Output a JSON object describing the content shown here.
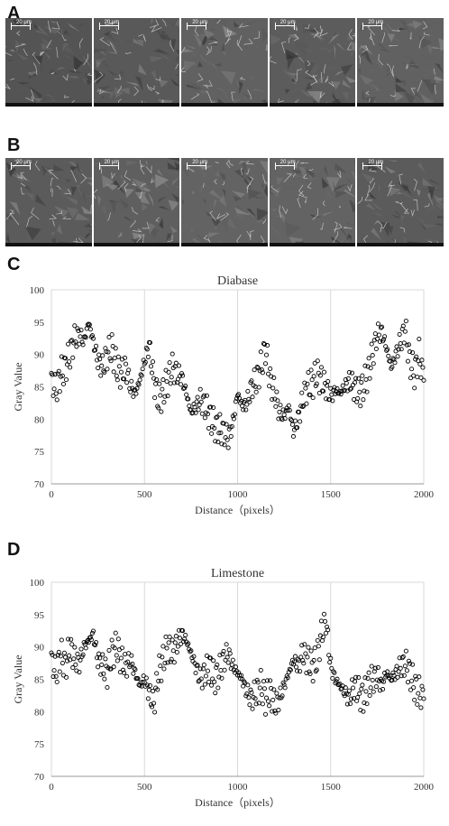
{
  "panels": {
    "a_label": "A",
    "b_label": "B",
    "c_label": "C",
    "d_label": "D"
  },
  "sem_rows": [
    {
      "images": [
        {
          "scale": "20 μm"
        },
        {
          "scale": "20 μm"
        },
        {
          "scale": "20 μm"
        },
        {
          "scale": "20 μm"
        },
        {
          "scale": "20 μm"
        }
      ]
    },
    {
      "images": [
        {
          "scale": "20 μm"
        },
        {
          "scale": "20 μm"
        },
        {
          "scale": "20 μm"
        },
        {
          "scale": "20 μm"
        },
        {
          "scale": "20 μm"
        }
      ]
    }
  ],
  "chart_data": [
    {
      "type": "scatter",
      "title": "Diabase",
      "xlabel": "Distance（pixels）",
      "ylabel": "Gray Value",
      "xlim": [
        0,
        2000
      ],
      "ylim": [
        70,
        100
      ],
      "xticks": [
        0,
        500,
        1000,
        1500,
        2000
      ],
      "yticks": [
        70,
        75,
        80,
        85,
        90,
        95,
        100
      ],
      "grid": "vertical",
      "marker": "open-circle",
      "series": [
        {
          "x": [
            0,
            25,
            50,
            75,
            100,
            125,
            150,
            175,
            200,
            225,
            250,
            275,
            300,
            325,
            350,
            375,
            400,
            425,
            450,
            475,
            500,
            525,
            550,
            575,
            600,
            625,
            650,
            675,
            700,
            725,
            750,
            775,
            800,
            825,
            850,
            875,
            900,
            925,
            950,
            975,
            1000,
            1025,
            1050,
            1075,
            1100,
            1125,
            1150,
            1175,
            1200,
            1225,
            1250,
            1275,
            1300,
            1325,
            1350,
            1375,
            1400,
            1425,
            1450,
            1475,
            1500,
            1525,
            1550,
            1575,
            1600,
            1625,
            1650,
            1675,
            1700,
            1725,
            1750,
            1775,
            1800,
            1825,
            1850,
            1875,
            1900,
            1925,
            1950,
            1975,
            2000
          ],
          "y": [
            86,
            84.5,
            87,
            88,
            90,
            92.5,
            93,
            92,
            95,
            92,
            89,
            88,
            90,
            91,
            88,
            87,
            88,
            85,
            84,
            86,
            89,
            91.5,
            86,
            83,
            84,
            86,
            88,
            87,
            86.5,
            84,
            81,
            82,
            83,
            82,
            80.5,
            79,
            78.5,
            78,
            77,
            79.5,
            84,
            82,
            82.5,
            85,
            86,
            88,
            91,
            86,
            84,
            81,
            80.5,
            82,
            78,
            80,
            83,
            85,
            85.5,
            87,
            86,
            85,
            83.5,
            84.5,
            84,
            85,
            86,
            85,
            84,
            85,
            87,
            90,
            93,
            93.5,
            91,
            88,
            90,
            92,
            94,
            89,
            87,
            90,
            86
          ]
        }
      ]
    },
    {
      "type": "scatter",
      "title": "Limestone",
      "xlabel": "Distance（pixels）",
      "ylabel": "Gray Value",
      "xlim": [
        0,
        2000
      ],
      "ylim": [
        70,
        100
      ],
      "xticks": [
        0,
        500,
        1000,
        1500,
        2000
      ],
      "yticks": [
        70,
        75,
        80,
        85,
        90,
        95,
        100
      ],
      "grid": "vertical",
      "marker": "open-circle",
      "series": [
        {
          "x": [
            0,
            25,
            50,
            75,
            100,
            125,
            150,
            175,
            200,
            225,
            250,
            275,
            300,
            325,
            350,
            375,
            400,
            425,
            450,
            475,
            500,
            525,
            550,
            575,
            600,
            625,
            650,
            675,
            700,
            725,
            750,
            775,
            800,
            825,
            850,
            875,
            900,
            925,
            950,
            975,
            1000,
            1025,
            1050,
            1075,
            1100,
            1125,
            1150,
            1175,
            1200,
            1225,
            1250,
            1275,
            1300,
            1325,
            1350,
            1375,
            1400,
            1425,
            1450,
            1475,
            1500,
            1525,
            1550,
            1575,
            1600,
            1625,
            1650,
            1675,
            1700,
            1725,
            1750,
            1775,
            1800,
            1825,
            1850,
            1875,
            1900,
            1925,
            1950,
            1975,
            2000
          ],
          "y": [
            88,
            86,
            89,
            87,
            90,
            88,
            87.5,
            90,
            91,
            92,
            88,
            87,
            86,
            89,
            90,
            88,
            87,
            88,
            86,
            84,
            85,
            83,
            81,
            86,
            88,
            90,
            89,
            90.5,
            92,
            91,
            89,
            87,
            85,
            86,
            87,
            85,
            86,
            88,
            89,
            87,
            86,
            85,
            83,
            82,
            83,
            84,
            82,
            83,
            81,
            82,
            84,
            86,
            88,
            87,
            89,
            88,
            87,
            88,
            92,
            94,
            87,
            85,
            84,
            83,
            82,
            84,
            83,
            82,
            84,
            85,
            85.5,
            84,
            86,
            85,
            86,
            87,
            87.5,
            86,
            84,
            83,
            82
          ]
        }
      ]
    }
  ]
}
